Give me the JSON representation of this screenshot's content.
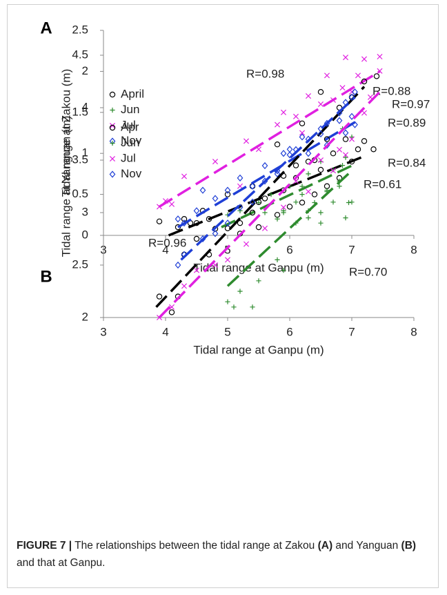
{
  "chart_data": [
    {
      "type": "scatter",
      "panel_label": "A",
      "xlabel": "Tidal range at Ganpu (m)",
      "ylabel": "Tidal range at Zakou (m)",
      "xlim": [
        3,
        8
      ],
      "ylim": [
        0,
        2.5
      ],
      "xticks": [
        3,
        4,
        5,
        6,
        7,
        8
      ],
      "yticks": [
        0,
        0.5,
        1,
        1.5,
        2,
        2.5
      ],
      "series": [
        {
          "name": "April",
          "color": "#000000",
          "marker": "circle",
          "x": [
            3.9,
            4.2,
            4.3,
            4.4,
            4.5,
            4.6,
            4.7,
            4.8,
            5.0,
            5.2,
            5.4,
            5.5,
            5.6,
            5.8,
            5.9,
            6.0,
            6.1,
            6.2,
            6.3,
            6.4,
            6.5,
            6.6,
            6.7,
            6.8,
            7.0,
            7.1,
            7.2,
            7.35
          ],
          "y": [
            0.17,
            0.1,
            0.2,
            0.15,
            0.15,
            0.3,
            0.2,
            0.08,
            0.5,
            0.15,
            0.6,
            0.1,
            0.45,
            0.25,
            0.55,
            0.35,
            0.7,
            0.4,
            0.9,
            0.5,
            0.8,
            0.6,
            1.0,
            0.7,
            0.9,
            1.05,
            1.15,
            1.05
          ],
          "fit": {
            "x": [
              4.05,
              7.15
            ],
            "y": [
              0.0,
              0.95
            ]
          }
        },
        {
          "name": "Jun",
          "color": "#2e8b2e",
          "marker": "plus",
          "x": [
            5.0,
            5.2,
            5.5,
            5.7,
            5.8,
            5.9,
            6.0,
            6.1,
            6.2,
            6.3,
            6.4,
            6.5,
            6.6,
            6.7,
            6.8,
            6.9,
            6.95,
            7.0,
            6.85,
            6.3
          ],
          "y": [
            0.25,
            0.3,
            0.4,
            0.5,
            0.2,
            0.3,
            0.6,
            0.15,
            0.5,
            0.75,
            0.4,
            0.9,
            0.55,
            0.8,
            0.6,
            0.95,
            0.4,
            1.2,
            1.3,
            0.3
          ],
          "fit": {
            "x": [
              4.9,
              7.0
            ],
            "y": [
              0.1,
              0.85
            ]
          }
        },
        {
          "name": "Jul",
          "color": "#e020e0",
          "marker": "x",
          "x": [
            3.9,
            4.0,
            4.1,
            4.3,
            4.8,
            5.2,
            5.3,
            5.5,
            5.8,
            5.9,
            6.1,
            6.3,
            6.5,
            6.6,
            6.7,
            6.85,
            6.9,
            7.0,
            7.1,
            7.2,
            7.45,
            6.2
          ],
          "y": [
            0.35,
            0.42,
            0.38,
            0.72,
            0.9,
            0.6,
            1.15,
            1.05,
            1.35,
            1.5,
            1.45,
            1.7,
            1.6,
            1.95,
            1.65,
            1.8,
            2.17,
            1.75,
            1.95,
            2.15,
            2.18,
            1.25
          ],
          "fit": {
            "x": [
              3.9,
              7.45
            ],
            "y": [
              0.35,
              2.0
            ]
          }
        },
        {
          "name": "Nov",
          "color": "#1f3fd6",
          "marker": "diamond",
          "x": [
            4.2,
            4.3,
            4.5,
            4.6,
            4.8,
            5.0,
            5.2,
            5.4,
            5.6,
            5.8,
            5.9,
            6.0,
            6.2,
            6.3,
            6.5,
            6.6,
            6.8,
            6.9,
            7.0,
            7.05
          ],
          "y": [
            0.2,
            0.15,
            0.3,
            0.55,
            0.45,
            0.55,
            0.7,
            0.6,
            0.85,
            0.75,
            1.0,
            1.05,
            1.2,
            1.0,
            1.3,
            1.1,
            1.4,
            1.25,
            1.45,
            1.35
          ],
          "fit": {
            "x": [
              4.2,
              7.05
            ],
            "y": [
              0.1,
              1.38
            ]
          }
        }
      ],
      "annotations": [
        {
          "text": "R=0.88",
          "color": "#e020e0"
        },
        {
          "text": "R=0.89",
          "color": "#1f3fd6"
        },
        {
          "text": "R=0.84",
          "color": "#000000"
        },
        {
          "text": "R=0.61",
          "color": "#2e8b2e"
        }
      ]
    },
    {
      "type": "scatter",
      "panel_label": "B",
      "xlabel": "Tidal range at Ganpu (m)",
      "ylabel": "Tidal range at Yanguan (m)",
      "xlim": [
        3,
        8
      ],
      "ylim": [
        2,
        4.5
      ],
      "xticks": [
        3,
        4,
        5,
        6,
        7,
        8
      ],
      "yticks": [
        2,
        2.5,
        3,
        3.5,
        4,
        4.5
      ],
      "series": [
        {
          "name": "Apr",
          "color": "#000000",
          "marker": "circle",
          "x": [
            3.9,
            4.1,
            4.2,
            4.3,
            4.5,
            4.7,
            5.0,
            5.2,
            5.4,
            5.5,
            5.8,
            5.9,
            6.1,
            6.2,
            6.4,
            6.5,
            6.6,
            6.8,
            6.9,
            7.0,
            7.2,
            7.4
          ],
          "y": [
            2.2,
            2.05,
            2.2,
            2.6,
            2.75,
            2.6,
            2.85,
            2.8,
            3.0,
            3.1,
            3.65,
            3.35,
            3.45,
            3.85,
            3.5,
            4.15,
            3.7,
            4.0,
            3.7,
            4.1,
            4.25,
            4.3
          ],
          "fit": {
            "x": [
              3.85,
              7.2
            ],
            "y": [
              2.1,
              4.2
            ]
          }
        },
        {
          "name": "Jun",
          "color": "#2e8b2e",
          "marker": "plus",
          "x": [
            5.0,
            5.1,
            5.2,
            5.4,
            5.5,
            5.8,
            5.9,
            5.6,
            5.9,
            6.1,
            6.3,
            6.5,
            6.6,
            6.7,
            6.8,
            6.9,
            7.0,
            6.85,
            6.2,
            6.5
          ],
          "y": [
            2.15,
            2.1,
            2.25,
            2.1,
            2.35,
            2.55,
            2.45,
            3.0,
            3.0,
            3.1,
            2.95,
            2.9,
            3.2,
            3.1,
            3.3,
            2.95,
            3.1,
            3.45,
            3.25,
            3.0
          ],
          "fit": {
            "x": [
              5.0,
              7.0
            ],
            "y": [
              2.3,
              3.4
            ]
          }
        },
        {
          "name": "Jul",
          "color": "#e020e0",
          "marker": "x",
          "x": [
            3.9,
            4.1,
            4.3,
            4.5,
            4.8,
            5.0,
            5.3,
            5.6,
            5.9,
            6.1,
            6.3,
            6.5,
            6.7,
            6.9,
            7.0,
            7.2,
            7.3,
            7.45,
            6.8
          ],
          "y": [
            2.0,
            2.1,
            2.3,
            2.45,
            2.5,
            2.55,
            2.7,
            2.85,
            3.05,
            3.3,
            3.2,
            3.5,
            3.4,
            3.55,
            3.7,
            3.95,
            4.1,
            4.35,
            3.6
          ],
          "fit": {
            "x": [
              3.9,
              7.45
            ],
            "y": [
              2.0,
              4.15
            ]
          }
        },
        {
          "name": "Nov",
          "color": "#1f3fd6",
          "marker": "diamond",
          "x": [
            4.2,
            4.3,
            4.6,
            4.8,
            5.0,
            5.2,
            5.4,
            5.6,
            5.8,
            6.0,
            6.1,
            6.3,
            6.5,
            6.6,
            6.8,
            6.9,
            7.0,
            7.05
          ],
          "y": [
            2.5,
            2.6,
            2.75,
            2.8,
            2.9,
            3.05,
            3.1,
            3.3,
            3.4,
            3.55,
            3.6,
            3.7,
            3.75,
            3.85,
            3.95,
            4.05,
            4.1,
            4.15
          ],
          "fit": {
            "x": [
              4.25,
              7.05
            ],
            "y": [
              2.55,
              4.1
            ]
          }
        }
      ],
      "annotations": [
        {
          "text": "R=0.98",
          "color": "#1f3fd6"
        },
        {
          "text": "R=0.97",
          "color": "#e020e0"
        },
        {
          "text": "R=0.96",
          "color": "#000000"
        },
        {
          "text": "R=0.70",
          "color": "#2e8b2e"
        }
      ]
    }
  ],
  "caption": [
    {
      "text": "FIGURE 7 |",
      "bold": true
    },
    {
      "text": " The relationships between the tidal range at Zakou ",
      "bold": false
    },
    {
      "text": "(A)",
      "bold": true
    },
    {
      "text": " and Yanguan ",
      "bold": false
    },
    {
      "text": "(B)",
      "bold": true
    },
    {
      "text": " and that at Ganpu.",
      "bold": false
    }
  ]
}
